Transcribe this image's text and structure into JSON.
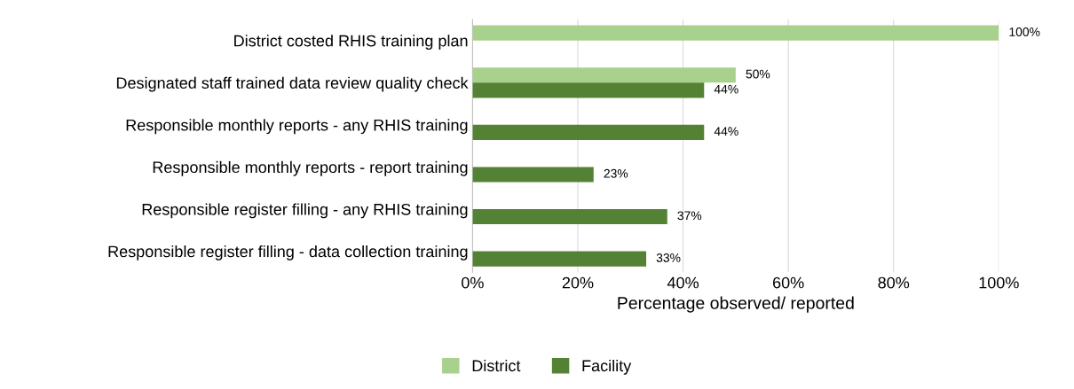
{
  "chart_data": {
    "type": "bar",
    "orientation": "horizontal",
    "xlabel": "Percentage observed/ reported",
    "categories": [
      "District costed RHIS training plan",
      "Designated staff trained data review quality check",
      "Responsible monthly reports - any RHIS training",
      "Responsible monthly reports - report training",
      "Responsible register filling - any RHIS training",
      "Responsible register filling - data collection training"
    ],
    "series": [
      {
        "name": "District",
        "color": "#a9d18e",
        "values": [
          100,
          50,
          null,
          null,
          null,
          null
        ],
        "value_labels": [
          "100%",
          "50%",
          null,
          null,
          null,
          null
        ]
      },
      {
        "name": "Facility",
        "color": "#548235",
        "values": [
          null,
          44,
          44,
          23,
          37,
          33
        ],
        "value_labels": [
          null,
          "44%",
          "44%",
          "23%",
          "37%",
          "33%"
        ]
      }
    ],
    "xlim": [
      0,
      100
    ],
    "xticks": [
      {
        "value": 0,
        "label": "0%"
      },
      {
        "value": 20,
        "label": "20%"
      },
      {
        "value": 40,
        "label": "40%"
      },
      {
        "value": 60,
        "label": "60%"
      },
      {
        "value": 80,
        "label": "80%"
      },
      {
        "value": 100,
        "label": "100%"
      }
    ],
    "grid": "x",
    "legend": "bottom"
  }
}
